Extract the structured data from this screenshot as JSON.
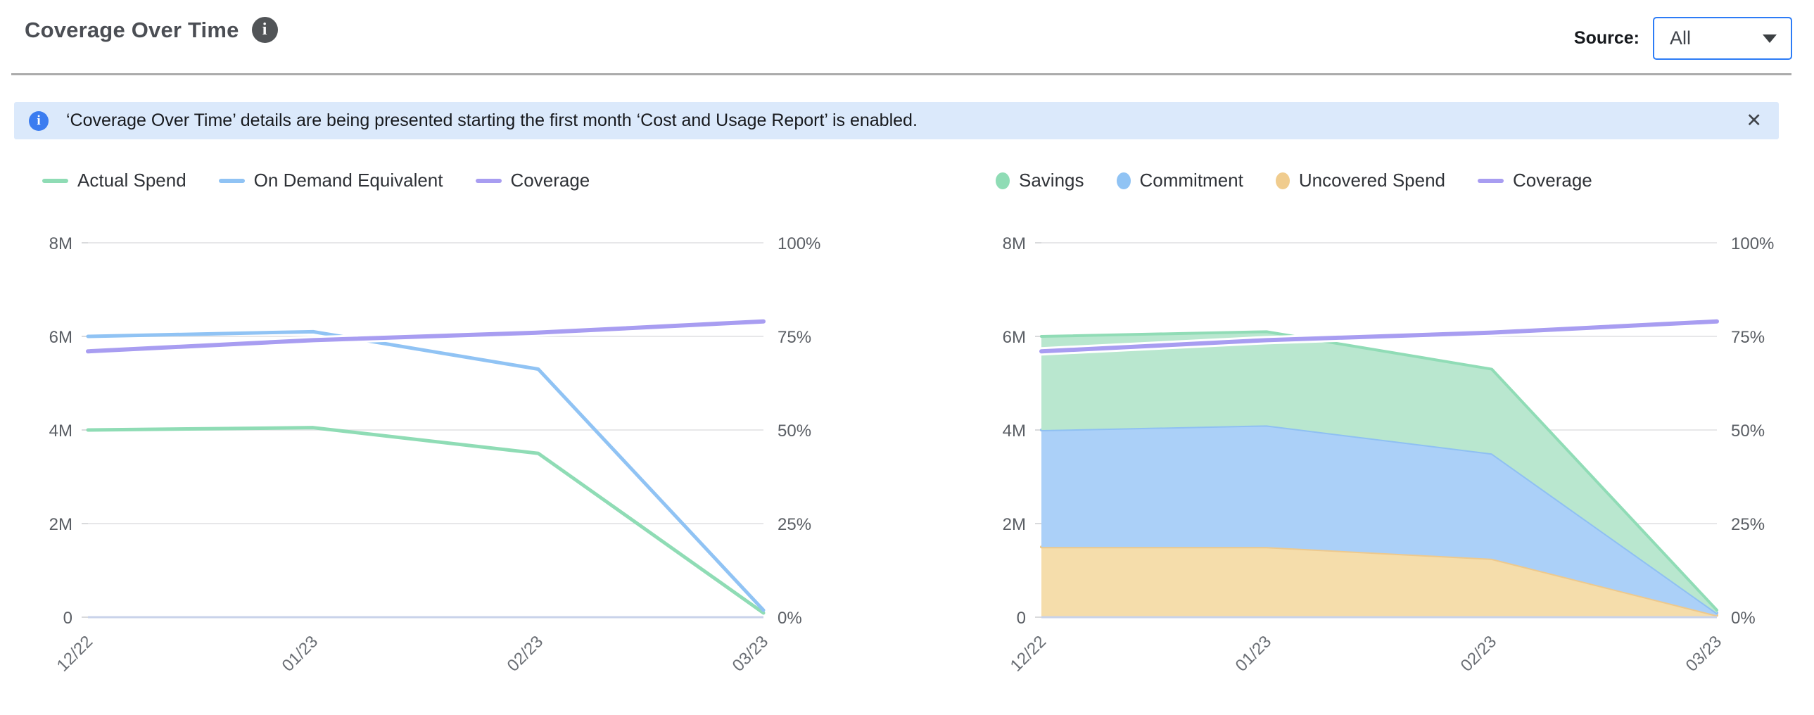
{
  "header": {
    "title": "Coverage Over Time",
    "info_icon": "i"
  },
  "source": {
    "label": "Source:",
    "value": "All"
  },
  "banner": {
    "icon": "i",
    "message": "‘Coverage Over Time’ details are being presented starting the first month ‘Cost and Usage Report’ is enabled.",
    "close_icon": "✕"
  },
  "colors": {
    "accent_blue": "#2d7cf6",
    "banner_bg": "#dbe9fb",
    "banner_icon_blue": "#3b7cf0",
    "grid": "#e7e7e9",
    "axis_line": "#c9d3ea",
    "tick_text": "#5a5e64",
    "green_line": "#8fdcb5",
    "blue_line": "#90c3f4",
    "purple_line": "#a89df1",
    "green_fill": "#b9e7cf",
    "blue_fill": "#abd0f8",
    "orange_fill": "#f5ddab"
  },
  "chart_data": [
    {
      "type": "line",
      "title": "",
      "categories": [
        "12/22",
        "01/23",
        "02/23",
        "03/23"
      ],
      "grid": true,
      "legend_position": "top",
      "y_left": {
        "label": "",
        "min": 0,
        "max": 8000000,
        "ticks": [
          "0",
          "2M",
          "4M",
          "6M",
          "8M"
        ]
      },
      "y_right": {
        "label": "",
        "min": 0,
        "max": 100,
        "ticks": [
          "0%",
          "25%",
          "50%",
          "75%",
          "100%"
        ]
      },
      "legend": [
        {
          "label": "Actual Spend",
          "marker": "line",
          "color": "#8fdcb5"
        },
        {
          "label": "On Demand Equivalent",
          "marker": "line",
          "color": "#90c3f4"
        },
        {
          "label": "Coverage",
          "marker": "line",
          "color": "#a89df1"
        }
      ],
      "series": [
        {
          "name": "Actual Spend",
          "axis": "left",
          "color": "#8fdcb5",
          "values": [
            4000000,
            4050000,
            3500000,
            90000
          ]
        },
        {
          "name": "On Demand Equivalent",
          "axis": "left",
          "color": "#90c3f4",
          "values": [
            6000000,
            6100000,
            5300000,
            150000
          ]
        },
        {
          "name": "Coverage",
          "axis": "right",
          "color": "#a89df1",
          "values": [
            71,
            74,
            76,
            79
          ]
        }
      ]
    },
    {
      "type": "area",
      "title": "",
      "categories": [
        "12/22",
        "01/23",
        "02/23",
        "03/23"
      ],
      "grid": true,
      "stacking": "normal",
      "legend_position": "top",
      "y_left": {
        "label": "",
        "min": 0,
        "max": 8000000,
        "ticks": [
          "0",
          "2M",
          "4M",
          "6M",
          "8M"
        ]
      },
      "y_right": {
        "label": "",
        "min": 0,
        "max": 100,
        "ticks": [
          "0%",
          "25%",
          "50%",
          "75%",
          "100%"
        ]
      },
      "legend": [
        {
          "label": "Savings",
          "marker": "circle",
          "color": "#8fdcb5"
        },
        {
          "label": "Commitment",
          "marker": "circle",
          "color": "#90c3f4"
        },
        {
          "label": "Uncovered Spend",
          "marker": "circle",
          "color": "#f0cc8e"
        },
        {
          "label": "Coverage",
          "marker": "line",
          "color": "#a89df1"
        }
      ],
      "series": [
        {
          "name": "Uncovered Spend",
          "axis": "left",
          "type": "area",
          "color": "#edc98e",
          "fill": "#f5ddab",
          "values": [
            1500000,
            1500000,
            1250000,
            40000
          ]
        },
        {
          "name": "Commitment",
          "axis": "left",
          "type": "area",
          "color": "#8fc0f2",
          "fill": "#abd0f8",
          "values": [
            2500000,
            2600000,
            2250000,
            50000
          ]
        },
        {
          "name": "Savings",
          "axis": "left",
          "type": "area",
          "color": "#90dcb6",
          "fill": "#b9e7cf",
          "values": [
            2000000,
            2000000,
            1800000,
            60000
          ]
        },
        {
          "name": "Coverage",
          "axis": "right",
          "type": "line",
          "color": "#a89df1",
          "values": [
            71,
            74,
            76,
            79
          ]
        }
      ]
    }
  ]
}
